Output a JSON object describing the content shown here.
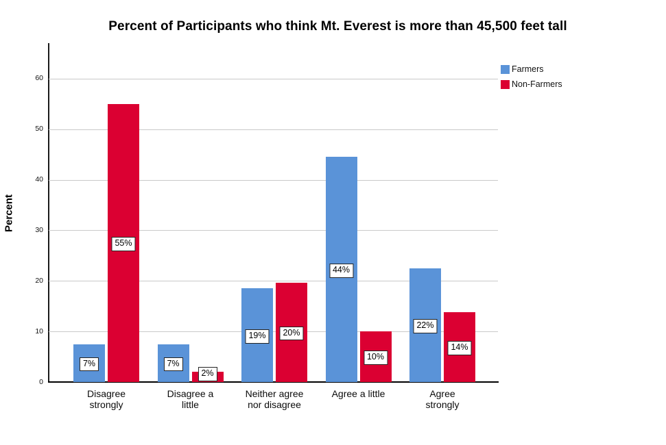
{
  "chart_data": {
    "type": "bar",
    "title": "Percent of Participants who think Mt. Everest is more than 45,500 feet tall",
    "ylabel": "Percent",
    "xlabel": "",
    "ylim": [
      0,
      67
    ],
    "yticks": [
      0,
      10,
      20,
      30,
      40,
      50,
      60
    ],
    "grid": "horizontal-light-gray",
    "legend_position": "top-right",
    "categories": [
      "Disagree strongly",
      "Disagree a little",
      "Neither agree nor disagree",
      "Agree a little",
      "Agree strongly"
    ],
    "category_display": [
      "Disagree\nstrongly",
      "Disagree a\nlittle",
      "Neither agree\nnor disagree",
      "Agree a little",
      "Agree\nstrongly"
    ],
    "series": [
      {
        "name": "Farmers",
        "color": "#5A93D8",
        "values": [
          7.5,
          7.5,
          18.5,
          44.5,
          22.5
        ],
        "labels": [
          "7%",
          "7%",
          "19%",
          "44%",
          "22%"
        ]
      },
      {
        "name": "Non-Farmers",
        "color": "#DB0032",
        "values": [
          55,
          2,
          19.7,
          10,
          13.8
        ],
        "labels": [
          "55%",
          "2%",
          "20%",
          "10%",
          "14%"
        ]
      }
    ]
  }
}
